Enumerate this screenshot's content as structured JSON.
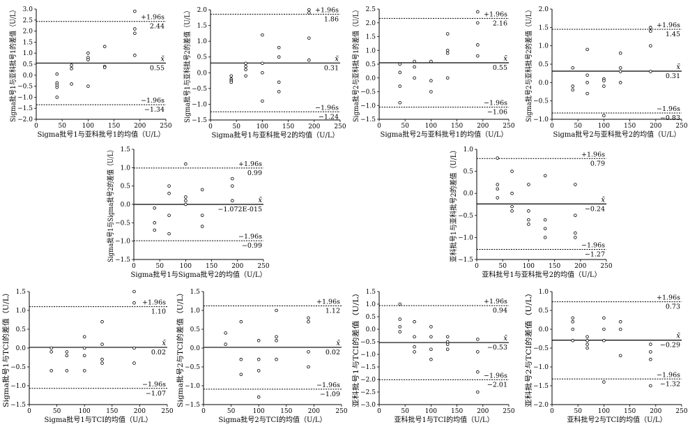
{
  "chart_data": [
    {
      "type": "scatter",
      "xlabel": "Sigma批号1与亚科批号1的均值（U/L）",
      "ylabel": "Sigma批号1与亚科批号1的差值（U/L）",
      "xticks": [
        "0",
        "50",
        "100",
        "150",
        "200",
        "250"
      ],
      "yticks": [
        "3.0",
        "2.5",
        "2.0",
        "1.5",
        "1.0",
        "0.5",
        "0.0",
        "−0.5",
        "−1.0",
        "−1.5",
        "−2.0"
      ],
      "xlim": [
        0,
        250
      ],
      "ylim": [
        -2.0,
        3.0
      ],
      "mean": 0.55,
      "upper": 2.44,
      "lower": -1.34,
      "mean_label": "x̄",
      "mean_value_label": "0.55",
      "upper_label": "+1.96s",
      "upper_value_label": "2.44",
      "lower_label": "−1.96s",
      "lower_value_label": "−1.34",
      "points": [
        {
          "x": 40,
          "y": 0.05
        },
        {
          "x": 40,
          "y": -0.35
        },
        {
          "x": 40,
          "y": -0.45
        },
        {
          "x": 40,
          "y": -0.55
        },
        {
          "x": 40,
          "y": -1.0
        },
        {
          "x": 68,
          "y": 0.45
        },
        {
          "x": 68,
          "y": 0.3
        },
        {
          "x": 68,
          "y": -0.4
        },
        {
          "x": 100,
          "y": 1.0
        },
        {
          "x": 100,
          "y": 0.8
        },
        {
          "x": 100,
          "y": 0.7
        },
        {
          "x": 100,
          "y": -0.5
        },
        {
          "x": 132,
          "y": 1.3
        },
        {
          "x": 132,
          "y": 0.4
        },
        {
          "x": 132,
          "y": 0.35
        },
        {
          "x": 190,
          "y": 2.9
        },
        {
          "x": 190,
          "y": 2.1
        },
        {
          "x": 190,
          "y": 1.9
        },
        {
          "x": 190,
          "y": 0.9
        }
      ]
    },
    {
      "type": "scatter",
      "xlabel": "Sigma批号1与亚科批号2的均值（U/L）",
      "ylabel": "Sigma批号1与亚科批号2的差值（U/L）",
      "xticks": [
        "0",
        "50",
        "100",
        "150",
        "200",
        "250"
      ],
      "yticks": [
        "2.0",
        "1.5",
        "1.0",
        "0.5",
        "0.0",
        "−0.5",
        "−1.0",
        "−1.5"
      ],
      "xlim": [
        0,
        250
      ],
      "ylim": [
        -1.5,
        2.0
      ],
      "mean": 0.31,
      "upper": 1.86,
      "lower": -1.24,
      "mean_label": "x̄",
      "mean_value_label": "0.31",
      "upper_label": "+1.96s",
      "upper_value_label": "1.86",
      "lower_label": "−1.96s",
      "lower_value_label": "−1.24",
      "points": [
        {
          "x": 40,
          "y": -0.1
        },
        {
          "x": 40,
          "y": -0.2
        },
        {
          "x": 40,
          "y": -0.25
        },
        {
          "x": 40,
          "y": -0.3
        },
        {
          "x": 68,
          "y": 0.3
        },
        {
          "x": 68,
          "y": 0.2
        },
        {
          "x": 68,
          "y": 0.1
        },
        {
          "x": 68,
          "y": -0.1
        },
        {
          "x": 100,
          "y": 1.2
        },
        {
          "x": 100,
          "y": 0.3
        },
        {
          "x": 100,
          "y": 0.0
        },
        {
          "x": 100,
          "y": -0.9
        },
        {
          "x": 132,
          "y": 0.8
        },
        {
          "x": 132,
          "y": 0.5
        },
        {
          "x": 132,
          "y": -0.3
        },
        {
          "x": 132,
          "y": -0.6
        },
        {
          "x": 190,
          "y": 2.0
        },
        {
          "x": 190,
          "y": 1.9
        },
        {
          "x": 190,
          "y": 1.1
        },
        {
          "x": 190,
          "y": 0.4
        }
      ]
    },
    {
      "type": "scatter",
      "xlabel": "Sigma批号2与亚科批号1的均值（U/L）",
      "ylabel": "Sigma批号2与亚科批号1的差值（U/L）",
      "xticks": [
        "0",
        "50",
        "100",
        "150",
        "200",
        "250"
      ],
      "yticks": [
        "2.5",
        "2.0",
        "1.5",
        "1.0",
        "0.5",
        "0.0",
        "−0.5",
        "−1.0",
        "−1.5"
      ],
      "xlim": [
        0,
        250
      ],
      "ylim": [
        -1.5,
        2.5
      ],
      "mean": 0.55,
      "upper": 2.16,
      "lower": -1.06,
      "mean_label": "x̄",
      "mean_value_label": "0.55",
      "upper_label": "+1.96s",
      "upper_value_label": "2.16",
      "lower_label": "−1.96s",
      "lower_value_label": "−1.06",
      "points": [
        {
          "x": 40,
          "y": 0.5
        },
        {
          "x": 40,
          "y": 0.2
        },
        {
          "x": 40,
          "y": -0.3
        },
        {
          "x": 40,
          "y": -0.9
        },
        {
          "x": 68,
          "y": 0.6
        },
        {
          "x": 68,
          "y": 0.4
        },
        {
          "x": 68,
          "y": 0.0
        },
        {
          "x": 100,
          "y": 0.6
        },
        {
          "x": 100,
          "y": -0.1
        },
        {
          "x": 100,
          "y": -0.5
        },
        {
          "x": 132,
          "y": 1.6
        },
        {
          "x": 132,
          "y": 1.0
        },
        {
          "x": 132,
          "y": 0.9
        },
        {
          "x": 132,
          "y": 0.0
        },
        {
          "x": 190,
          "y": 2.4
        },
        {
          "x": 190,
          "y": 2.0
        },
        {
          "x": 190,
          "y": 1.2
        },
        {
          "x": 190,
          "y": 0.8
        }
      ]
    },
    {
      "type": "scatter",
      "xlabel": "Sigma批号2与亚科批号2的均值（U/L）",
      "ylabel": "Sigma批号2与亚科批号2的差值（U/L）",
      "xticks": [
        "0",
        "50",
        "100",
        "150",
        "200",
        "250"
      ],
      "yticks": [
        "2.0",
        "1.5",
        "1.0",
        "0.5",
        "0.0",
        "−0.5",
        "−1.0"
      ],
      "xlim": [
        0,
        250
      ],
      "ylim": [
        -1.0,
        2.0
      ],
      "mean": 0.31,
      "upper": 1.45,
      "lower": -0.83,
      "mean_label": "x̄",
      "mean_value_label": "0.31",
      "upper_label": "+1.96s",
      "upper_value_label": "1.45",
      "lower_label": "−1.96s",
      "lower_value_label": "−0.83",
      "points": [
        {
          "x": 40,
          "y": 0.4
        },
        {
          "x": 40,
          "y": -0.1
        },
        {
          "x": 40,
          "y": -0.2
        },
        {
          "x": 68,
          "y": 0.9
        },
        {
          "x": 68,
          "y": 0.2
        },
        {
          "x": 68,
          "y": 0.0
        },
        {
          "x": 68,
          "y": -0.3
        },
        {
          "x": 100,
          "y": 0.1
        },
        {
          "x": 100,
          "y": 0.05
        },
        {
          "x": 100,
          "y": -0.1
        },
        {
          "x": 100,
          "y": -0.9
        },
        {
          "x": 132,
          "y": 0.8
        },
        {
          "x": 132,
          "y": 0.4
        },
        {
          "x": 132,
          "y": 0.3
        },
        {
          "x": 132,
          "y": 0.0
        },
        {
          "x": 190,
          "y": 1.5
        },
        {
          "x": 190,
          "y": 1.4
        },
        {
          "x": 190,
          "y": 1.0
        },
        {
          "x": 190,
          "y": 0.3
        }
      ]
    },
    {
      "type": "scatter",
      "xlabel": "Sigma批号1与Sigma批号2的均值（U/L）",
      "ylabel": "Sigma批号1与Sigma批号2的差值（U/L）",
      "xticks": [
        "0",
        "50",
        "100",
        "150",
        "200",
        "250"
      ],
      "yticks": [
        "1.5",
        "1.0",
        "0.5",
        "0.0",
        "−0.5",
        "−1.0",
        "−1.5"
      ],
      "xlim": [
        0,
        250
      ],
      "ylim": [
        -1.5,
        1.5
      ],
      "mean": 0.0,
      "upper": 0.99,
      "lower": -0.99,
      "mean_label": "x̄",
      "mean_value_label": "−1.072E-015",
      "upper_label": "+1.96s",
      "upper_value_label": "0.99",
      "lower_label": "−1.96s",
      "lower_value_label": "−0.99",
      "points": [
        {
          "x": 40,
          "y": -0.1
        },
        {
          "x": 40,
          "y": -0.5
        },
        {
          "x": 40,
          "y": -0.7
        },
        {
          "x": 68,
          "y": 0.5
        },
        {
          "x": 68,
          "y": 0.3
        },
        {
          "x": 68,
          "y": -0.3
        },
        {
          "x": 68,
          "y": -0.8
        },
        {
          "x": 100,
          "y": 1.1
        },
        {
          "x": 100,
          "y": 0.2
        },
        {
          "x": 100,
          "y": 0.1
        },
        {
          "x": 100,
          "y": 0.0
        },
        {
          "x": 132,
          "y": 0.4
        },
        {
          "x": 132,
          "y": -0.3
        },
        {
          "x": 132,
          "y": -0.6
        },
        {
          "x": 190,
          "y": 0.7
        },
        {
          "x": 190,
          "y": 0.5
        },
        {
          "x": 190,
          "y": 0.1
        }
      ]
    },
    {
      "type": "scatter",
      "xlabel": "亚科批号1与亚科批号2的均值（U/L）",
      "ylabel": "亚科批号1与亚科批号2的差值（U/L）",
      "xticks": [
        "0",
        "50",
        "100",
        "150",
        "200",
        "250"
      ],
      "yticks": [
        "1.0",
        "0.5",
        "0.0",
        "−0.5",
        "−1.0",
        "−1.5"
      ],
      "xlim": [
        0,
        250
      ],
      "ylim": [
        -1.5,
        1.0
      ],
      "mean": -0.24,
      "upper": 0.79,
      "lower": -1.27,
      "mean_label": "x̄",
      "mean_value_label": "−0.24",
      "upper_label": "+1.96s",
      "upper_value_label": "0.79",
      "lower_label": "−1.96s",
      "lower_value_label": "−1.27",
      "points": [
        {
          "x": 40,
          "y": 0.8
        },
        {
          "x": 40,
          "y": 0.2
        },
        {
          "x": 40,
          "y": 0.1
        },
        {
          "x": 40,
          "y": -0.1
        },
        {
          "x": 68,
          "y": 0.5
        },
        {
          "x": 68,
          "y": 0.0
        },
        {
          "x": 68,
          "y": -0.3
        },
        {
          "x": 68,
          "y": -0.4
        },
        {
          "x": 100,
          "y": 0.2
        },
        {
          "x": 100,
          "y": -0.4
        },
        {
          "x": 100,
          "y": -0.6
        },
        {
          "x": 100,
          "y": -0.7
        },
        {
          "x": 132,
          "y": 0.4
        },
        {
          "x": 132,
          "y": -0.6
        },
        {
          "x": 132,
          "y": -0.8
        },
        {
          "x": 132,
          "y": -1.0
        },
        {
          "x": 190,
          "y": 0.2
        },
        {
          "x": 190,
          "y": -0.5
        },
        {
          "x": 190,
          "y": -0.9
        },
        {
          "x": 190,
          "y": -1.0
        }
      ]
    },
    {
      "type": "scatter",
      "xlabel": "Sigma批号1与TCI的均值（U/L）",
      "ylabel": "Sigma批号1与TCI的差值（U/L）",
      "xticks": [
        "0",
        "50",
        "100",
        "150",
        "200",
        "250"
      ],
      "yticks": [
        "1.5",
        "1.0",
        "0.5",
        "0.0",
        "−0.5",
        "−1.0",
        "−1.5"
      ],
      "xlim": [
        0,
        250
      ],
      "ylim": [
        -1.5,
        1.5
      ],
      "mean": 0.02,
      "upper": 1.1,
      "lower": -1.07,
      "mean_label": "x̄",
      "mean_value_label": "0.02",
      "upper_label": "+1.96s",
      "upper_value_label": "1.10",
      "lower_label": "−1.96s",
      "lower_value_label": "−1.07",
      "points": [
        {
          "x": 40,
          "y": 0.0
        },
        {
          "x": 40,
          "y": -0.1
        },
        {
          "x": 40,
          "y": -0.6
        },
        {
          "x": 68,
          "y": -0.1
        },
        {
          "x": 68,
          "y": -0.2
        },
        {
          "x": 68,
          "y": -0.6
        },
        {
          "x": 100,
          "y": 0.3
        },
        {
          "x": 100,
          "y": 0.0
        },
        {
          "x": 100,
          "y": -0.2
        },
        {
          "x": 100,
          "y": -0.6
        },
        {
          "x": 132,
          "y": 0.7
        },
        {
          "x": 132,
          "y": 0.1
        },
        {
          "x": 132,
          "y": -0.3
        },
        {
          "x": 132,
          "y": -0.4
        },
        {
          "x": 190,
          "y": 1.5
        },
        {
          "x": 190,
          "y": 1.2
        },
        {
          "x": 190,
          "y": 0.0
        },
        {
          "x": 190,
          "y": -0.4
        }
      ]
    },
    {
      "type": "scatter",
      "xlabel": "Sigma批号2与TCI的均值（U/L）",
      "ylabel": "Sigma批号2与TCI的差值（U/L）",
      "xticks": [
        "0",
        "50",
        "100",
        "150",
        "200",
        "250"
      ],
      "yticks": [
        "1.5",
        "1.0",
        "0.5",
        "0.0",
        "−0.5",
        "−1.0",
        "−1.5"
      ],
      "xlim": [
        0,
        250
      ],
      "ylim": [
        -1.5,
        1.5
      ],
      "mean": 0.02,
      "upper": 1.12,
      "lower": -1.09,
      "mean_label": "x̄",
      "mean_value_label": "0.02",
      "upper_label": "+1.96s",
      "upper_value_label": "1.12",
      "lower_label": "−1.96s",
      "lower_value_label": "−1.09",
      "points": [
        {
          "x": 40,
          "y": 0.4
        },
        {
          "x": 40,
          "y": 0.1
        },
        {
          "x": 68,
          "y": 0.7
        },
        {
          "x": 68,
          "y": -0.3
        },
        {
          "x": 68,
          "y": -0.7
        },
        {
          "x": 100,
          "y": 0.2
        },
        {
          "x": 100,
          "y": -0.3
        },
        {
          "x": 100,
          "y": -0.6
        },
        {
          "x": 100,
          "y": -1.3
        },
        {
          "x": 132,
          "y": 1.0
        },
        {
          "x": 132,
          "y": 0.3
        },
        {
          "x": 132,
          "y": 0.2
        },
        {
          "x": 132,
          "y": -0.3
        },
        {
          "x": 190,
          "y": 0.8
        },
        {
          "x": 190,
          "y": 0.7
        },
        {
          "x": 190,
          "y": -0.1
        },
        {
          "x": 190,
          "y": -0.5
        }
      ]
    },
    {
      "type": "scatter",
      "xlabel": "亚科批号1与TCI的均值（U/L）",
      "ylabel": "亚科批号1与TCI的差值（U/L）",
      "xticks": [
        "0",
        "50",
        "100",
        "150",
        "200",
        "250"
      ],
      "yticks": [
        "1.5",
        "1.0",
        "0.5",
        "0.0",
        "−0.5",
        "−1.0",
        "−1.5",
        "−2.0",
        "−2.5",
        "−3.0"
      ],
      "xlim": [
        0,
        250
      ],
      "ylim": [
        -3.0,
        1.5
      ],
      "mean": -0.53,
      "upper": 0.94,
      "lower": -2.01,
      "mean_label": "x̄",
      "mean_value_label": "−0.53",
      "upper_label": "+1.96s",
      "upper_value_label": "0.94",
      "lower_label": "−1.96s",
      "lower_value_label": "−2.01",
      "points": [
        {
          "x": 40,
          "y": 1.0
        },
        {
          "x": 40,
          "y": 0.4
        },
        {
          "x": 40,
          "y": 0.1
        },
        {
          "x": 40,
          "y": -0.1
        },
        {
          "x": 68,
          "y": 0.3
        },
        {
          "x": 68,
          "y": -0.3
        },
        {
          "x": 68,
          "y": -0.7
        },
        {
          "x": 68,
          "y": -0.9
        },
        {
          "x": 100,
          "y": 0.1
        },
        {
          "x": 100,
          "y": -0.3
        },
        {
          "x": 100,
          "y": -0.8
        },
        {
          "x": 100,
          "y": -1.2
        },
        {
          "x": 132,
          "y": -0.3
        },
        {
          "x": 132,
          "y": -0.5
        },
        {
          "x": 132,
          "y": -0.6
        },
        {
          "x": 132,
          "y": -0.8
        },
        {
          "x": 190,
          "y": -0.4
        },
        {
          "x": 190,
          "y": -0.9
        },
        {
          "x": 190,
          "y": -1.7
        },
        {
          "x": 190,
          "y": -2.5
        }
      ]
    },
    {
      "type": "scatter",
      "xlabel": "亚科批号2与TCI的均值（U/L）",
      "ylabel": "亚科批号2与TCI的差值（U/L）",
      "xticks": [
        "0",
        "50",
        "100",
        "150",
        "200",
        "250"
      ],
      "yticks": [
        "1.0",
        "0.5",
        "0.0",
        "−0.5",
        "−1.0",
        "−1.5",
        "−2.0"
      ],
      "xlim": [
        0,
        250
      ],
      "ylim": [
        -2.0,
        1.0
      ],
      "mean": -0.29,
      "upper": 0.73,
      "lower": -1.32,
      "mean_label": "x̄",
      "mean_value_label": "−0.29",
      "upper_label": "+1.96s",
      "upper_value_label": "0.73",
      "lower_label": "−1.96s",
      "lower_value_label": "−1.32",
      "points": [
        {
          "x": 40,
          "y": 0.3
        },
        {
          "x": 40,
          "y": 0.2
        },
        {
          "x": 40,
          "y": 0.0
        },
        {
          "x": 40,
          "y": -0.3
        },
        {
          "x": 68,
          "y": -0.2
        },
        {
          "x": 68,
          "y": -0.3
        },
        {
          "x": 68,
          "y": -0.4
        },
        {
          "x": 68,
          "y": -0.5
        },
        {
          "x": 100,
          "y": 0.3
        },
        {
          "x": 100,
          "y": 0.0
        },
        {
          "x": 100,
          "y": -0.3
        },
        {
          "x": 100,
          "y": -1.4
        },
        {
          "x": 132,
          "y": 0.2
        },
        {
          "x": 132,
          "y": 0.0
        },
        {
          "x": 132,
          "y": -0.7
        },
        {
          "x": 190,
          "y": -0.4
        },
        {
          "x": 190,
          "y": -0.6
        },
        {
          "x": 190,
          "y": -0.8
        },
        {
          "x": 190,
          "y": -1.5
        }
      ]
    }
  ]
}
